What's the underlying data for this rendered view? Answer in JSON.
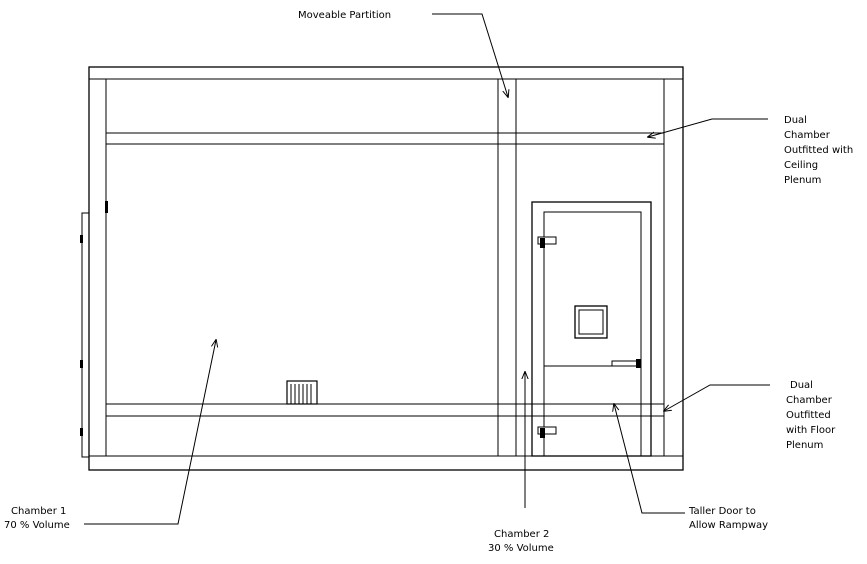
{
  "diagram": {
    "colors": {
      "line": "#000000",
      "background": "#ffffff"
    },
    "labels": {
      "moveable_partition": "Moveable Partition",
      "ceiling_plenum": [
        "Dual",
        "Chamber",
        "Outfitted with",
        "Ceiling",
        "Plenum"
      ],
      "floor_plenum": [
        "Dual",
        "Chamber",
        "Outfitted",
        "with Floor",
        "Plenum"
      ],
      "chamber_1": [
        "Chamber 1",
        "70 % Volume"
      ],
      "chamber_2": [
        "Chamber 2",
        "30 % Volume"
      ],
      "taller_door": [
        "Taller Door to",
        "Allow Rampway"
      ]
    }
  }
}
